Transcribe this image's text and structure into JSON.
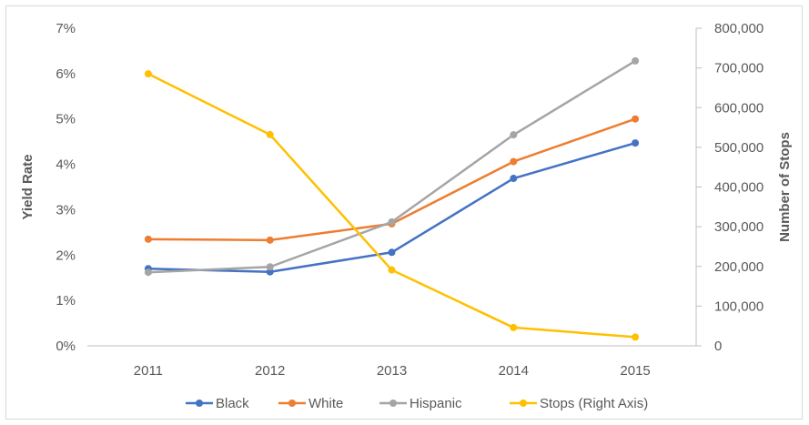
{
  "chart_data": {
    "type": "line",
    "title": "",
    "categories": [
      "2011",
      "2012",
      "2013",
      "2014",
      "2015"
    ],
    "left_axis": {
      "label": "Yield Rate",
      "ylim": [
        0,
        7
      ],
      "ticks": [
        0,
        1,
        2,
        3,
        4,
        5,
        6,
        7
      ],
      "tick_labels": [
        "0%",
        "1%",
        "2%",
        "3%",
        "4%",
        "5%",
        "6%",
        "7%"
      ]
    },
    "right_axis": {
      "label": "Number of Stops",
      "ylim": [
        0,
        800000
      ],
      "ticks": [
        0,
        100000,
        200000,
        300000,
        400000,
        500000,
        600000,
        700000,
        800000
      ],
      "tick_labels": [
        "0",
        "100,000",
        "200,000",
        "300,000",
        "400,000",
        "500,000",
        "600,000",
        "700,000",
        "800,000"
      ]
    },
    "series": [
      {
        "name": "Black",
        "axis": "left",
        "color": "#4472c4",
        "values": [
          1.7,
          1.63,
          2.06,
          3.69,
          4.47
        ]
      },
      {
        "name": "White",
        "axis": "left",
        "color": "#ed7d31",
        "values": [
          2.35,
          2.33,
          2.69,
          4.06,
          5.0
        ]
      },
      {
        "name": "Hispanic",
        "axis": "left",
        "color": "#a5a5a5",
        "values": [
          1.62,
          1.74,
          2.73,
          4.65,
          6.28
        ]
      },
      {
        "name": "Stops (Right Axis)",
        "axis": "right",
        "color": "#ffc000",
        "values": [
          685000,
          532000,
          191000,
          46000,
          22000
        ]
      }
    ],
    "grid": false,
    "legend_position": "bottom"
  }
}
